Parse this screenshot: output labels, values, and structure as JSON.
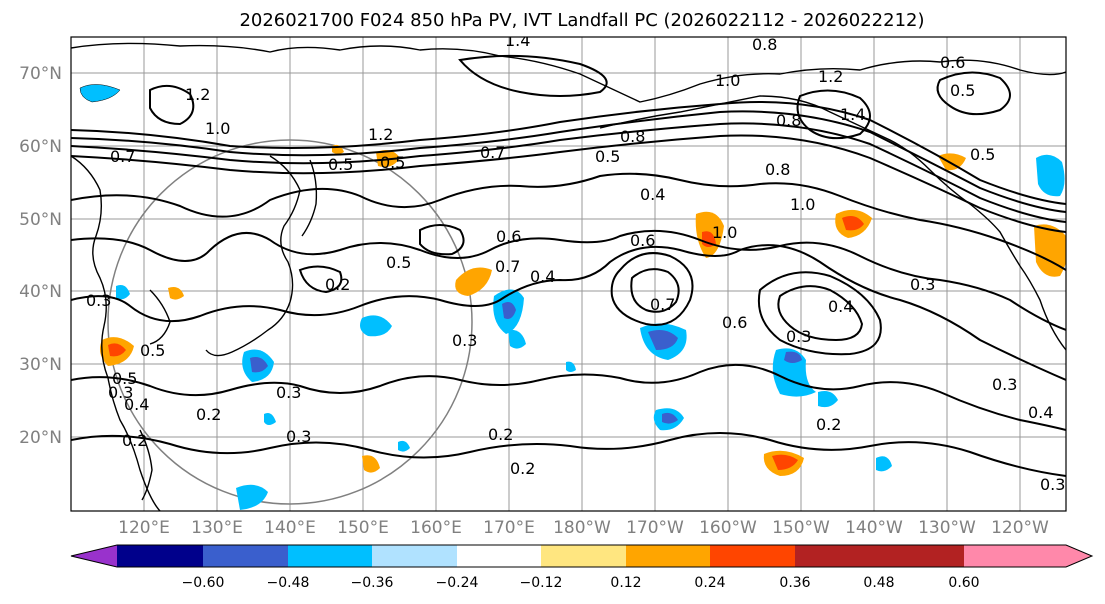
{
  "title": "2026021700 F024 850 hPa PV, IVT Landfall PC (2026022112 - 2026022212)",
  "lat_labels": [
    "70°N",
    "60°N",
    "50°N",
    "40°N",
    "30°N",
    "20°N"
  ],
  "lon_labels": [
    "120°E",
    "130°E",
    "140°E",
    "150°E",
    "160°E",
    "170°E",
    "180°W",
    "170°W",
    "160°W",
    "150°W",
    "140°W",
    "130°W",
    "120°W"
  ],
  "colorbar": {
    "colors": [
      "#9932cc",
      "#00008b",
      "#3a5fcd",
      "#00bfff",
      "#b0e2ff",
      "#ffffff",
      "#ffe680",
      "#ffa500",
      "#ff4500",
      "#b22222",
      "#ff88aa"
    ],
    "tick_labels": [
      "−0.60",
      "−0.48",
      "−0.36",
      "−0.24",
      "−0.12",
      "0.12",
      "0.24",
      "0.36",
      "0.48",
      "0.60"
    ]
  },
  "contour_labels": [
    "1.4",
    "0.8",
    "1.0",
    "1.2",
    "0.6",
    "0.5",
    "1.2",
    "1.0",
    "1.4",
    "0.8",
    "0.5",
    "0.7",
    "0.7",
    "0.5",
    "0.5",
    "0.8",
    "1.2",
    "0.5",
    "0.5",
    "0.6",
    "1.0",
    "0.8",
    "0.4",
    "1.0",
    "0.6",
    "0.4",
    "0.5",
    "0.7",
    "0.2",
    "0.3",
    "0.6",
    "0.3",
    "0.4",
    "0.7",
    "0.3",
    "0.4",
    "0.5",
    "0.3",
    "0.3",
    "0.2",
    "0.3",
    "0.2",
    "0.2",
    "0.2",
    "0.3",
    "0.3",
    "0.4",
    "0.3",
    "0.2"
  ]
}
